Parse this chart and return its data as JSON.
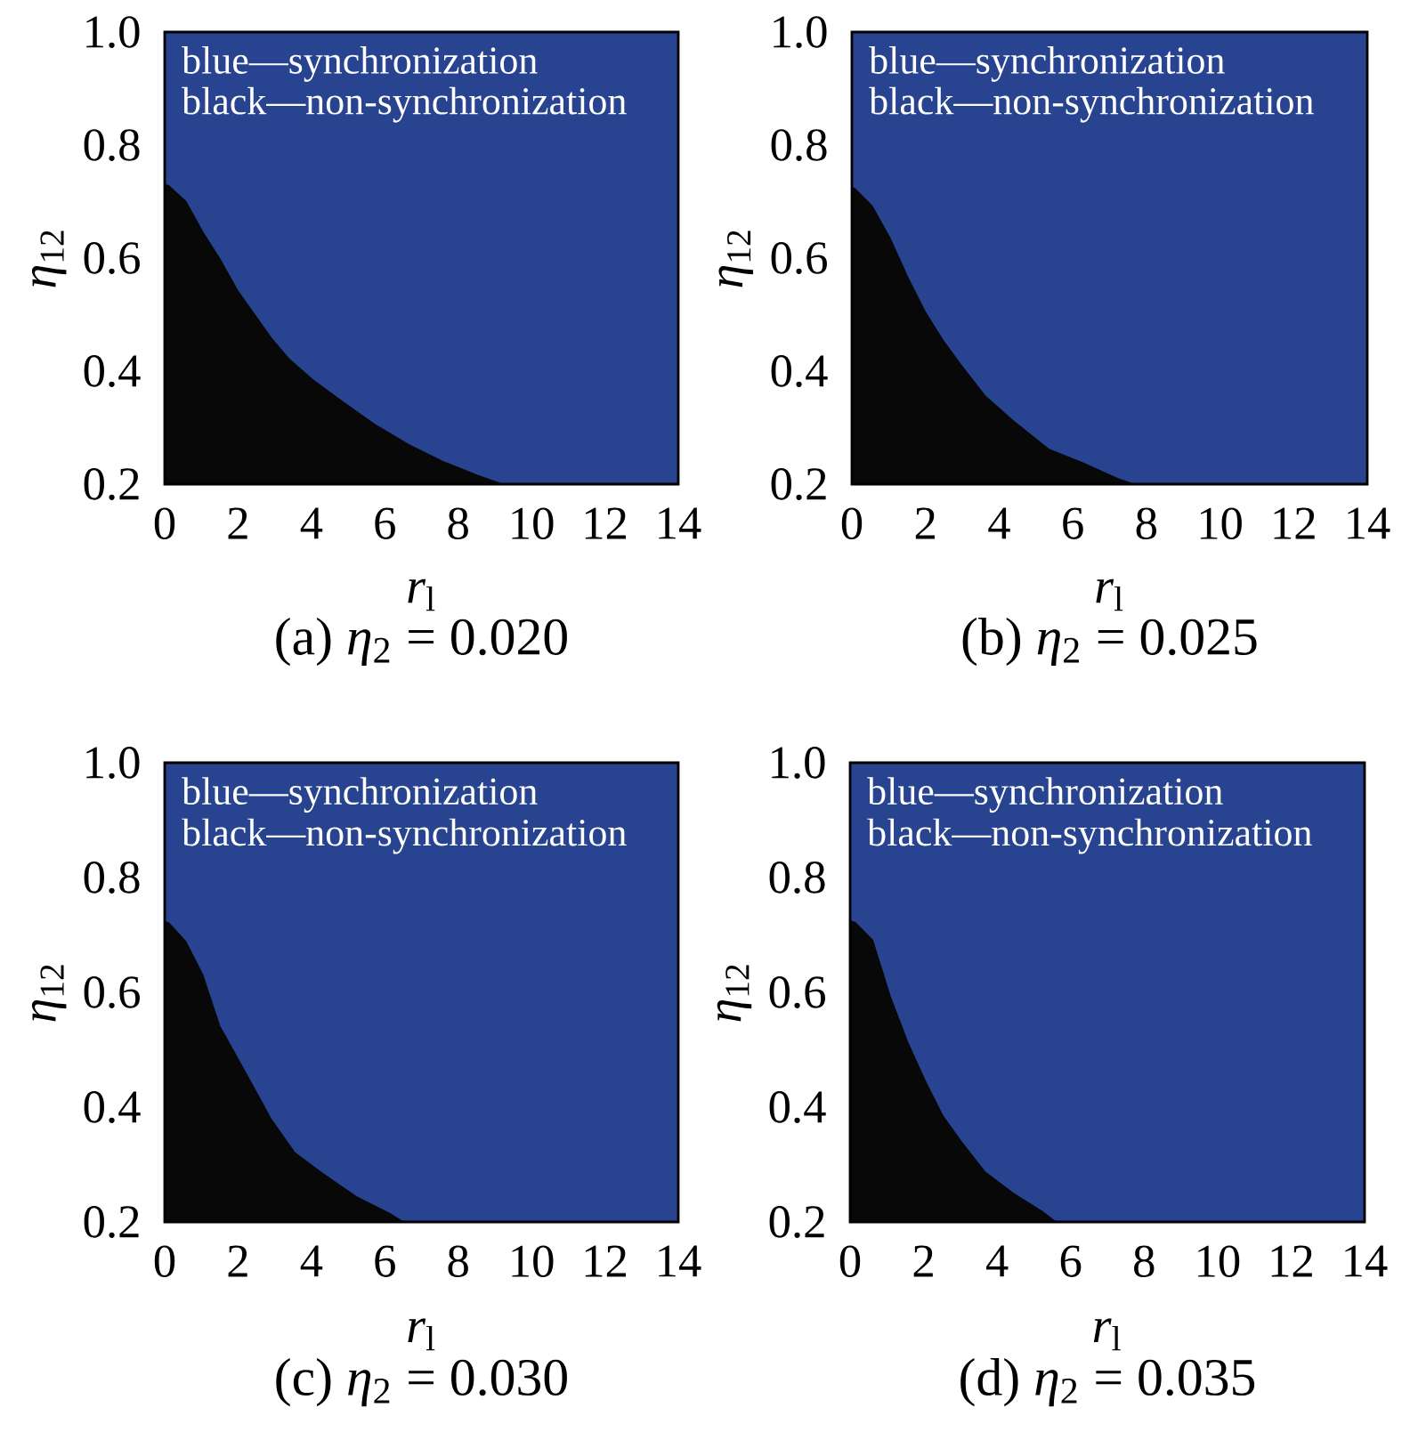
{
  "chart_data": [
    {
      "type": "area",
      "title": "(a) *η*$_{2}$ = 0.020",
      "xlabel": "*r*$_{l}$",
      "ylabel": "*η*$_{12}$",
      "xlim": [
        0,
        14
      ],
      "ylim": [
        0.2,
        1.0
      ],
      "xticks": [
        0,
        2,
        4,
        6,
        8,
        10,
        12,
        14
      ],
      "yticks": [
        {
          "value": 0.2,
          "label": "0.2"
        },
        {
          "value": 0.4,
          "label": "0.4"
        },
        {
          "value": 0.6,
          "label": "0.6"
        },
        {
          "value": 0.8,
          "label": "0.8"
        },
        {
          "value": 1.0,
          "label": "1.0"
        }
      ],
      "bands": [
        {
          "axis": "y",
          "from": 0.2,
          "to": 1.0,
          "color": "#28438f"
        }
      ],
      "annotations": [
        "blue—synchronization",
        "black—non-synchronization"
      ],
      "series": [
        {
          "color": "#080808",
          "x": [
            0,
            0.11,
            0.58,
            1.04,
            1.51,
            1.98,
            2.44,
            2.91,
            3.38,
            4.03,
            4.78,
            5.71,
            6.65,
            7.58,
            8.51,
            9.2
          ],
          "values": [
            0.73,
            0.728,
            0.7,
            0.646,
            0.598,
            0.543,
            0.501,
            0.458,
            0.422,
            0.385,
            0.349,
            0.306,
            0.27,
            0.24,
            0.216,
            0.2
          ]
        }
      ]
    },
    {
      "type": "area",
      "title": "(b) *η*$_{2}$ = 0.025",
      "xlabel": "*r*$_{l}$",
      "ylabel": "*η*$_{12}$",
      "xlim": [
        0,
        14
      ],
      "ylim": [
        0.2,
        1.0
      ],
      "xticks": [
        0,
        2,
        4,
        6,
        8,
        10,
        12,
        14
      ],
      "yticks": [
        {
          "value": 0.2,
          "label": "0.2"
        },
        {
          "value": 0.4,
          "label": "0.4"
        },
        {
          "value": 0.6,
          "label": "0.6"
        },
        {
          "value": 0.8,
          "label": "0.8"
        },
        {
          "value": 1.0,
          "label": "1.0"
        }
      ],
      "bands": [
        {
          "axis": "y",
          "from": 0.2,
          "to": 1.0,
          "color": "#28438f"
        }
      ],
      "annotations": [
        "blue—synchronization",
        "black—non-synchronization"
      ],
      "series": [
        {
          "color": "#080808",
          "x": [
            0,
            0.08,
            0.55,
            1.03,
            1.51,
            1.99,
            2.47,
            2.95,
            3.62,
            4.38,
            5.34,
            6.29,
            7.25,
            7.65
          ],
          "values": [
            0.725,
            0.723,
            0.692,
            0.636,
            0.567,
            0.505,
            0.455,
            0.412,
            0.356,
            0.312,
            0.262,
            0.237,
            0.209,
            0.2
          ]
        }
      ]
    },
    {
      "type": "area",
      "title": "(c) *η*$_{2}$ = 0.030",
      "xlabel": "*r*$_{l}$",
      "ylabel": "*η*$_{12}$",
      "xlim": [
        0,
        14
      ],
      "ylim": [
        0.2,
        1.0
      ],
      "xticks": [
        0,
        2,
        4,
        6,
        8,
        10,
        12,
        14
      ],
      "yticks": [
        {
          "value": 0.2,
          "label": "0.2"
        },
        {
          "value": 0.4,
          "label": "0.4"
        },
        {
          "value": 0.6,
          "label": "0.6"
        },
        {
          "value": 0.8,
          "label": "0.8"
        },
        {
          "value": 1.0,
          "label": "1.0"
        }
      ],
      "bands": [
        {
          "axis": "y",
          "from": 0.2,
          "to": 1.0,
          "color": "#28438f"
        }
      ],
      "annotations": [
        "blue—synchronization",
        "black—non-synchronization"
      ],
      "series": [
        {
          "color": "#080808",
          "x": [
            0,
            0.11,
            0.57,
            1.04,
            1.5,
            1.97,
            2.43,
            2.89,
            3.54,
            4.29,
            5.22,
            6.15,
            6.5
          ],
          "values": [
            0.723,
            0.721,
            0.689,
            0.63,
            0.541,
            0.487,
            0.434,
            0.38,
            0.321,
            0.285,
            0.244,
            0.214,
            0.2
          ]
        }
      ]
    },
    {
      "type": "area",
      "title": "(d) *η*$_{2}$ = 0.035",
      "xlabel": "*r*$_{l}$",
      "ylabel": "*η*$_{12}$",
      "xlim": [
        0,
        14
      ],
      "ylim": [
        0.2,
        1.0
      ],
      "xticks": [
        0,
        2,
        4,
        6,
        8,
        10,
        12,
        14
      ],
      "yticks": [
        {
          "value": 0.2,
          "label": "0.2"
        },
        {
          "value": 0.4,
          "label": "0.4"
        },
        {
          "value": 0.6,
          "label": "0.6"
        },
        {
          "value": 0.8,
          "label": "0.8"
        },
        {
          "value": 1.0,
          "label": "1.0"
        }
      ],
      "bands": [
        {
          "axis": "y",
          "from": 0.2,
          "to": 1.0,
          "color": "#28438f"
        }
      ],
      "annotations": [
        "blue—synchronization",
        "black—non-synchronization"
      ],
      "series": [
        {
          "color": "#080808",
          "x": [
            0,
            0.13,
            0.61,
            1.09,
            1.56,
            2.04,
            2.52,
            3.0,
            3.67,
            4.44,
            5.21,
            5.6
          ],
          "values": [
            0.724,
            0.722,
            0.691,
            0.593,
            0.514,
            0.446,
            0.385,
            0.342,
            0.287,
            0.25,
            0.219,
            0.2
          ]
        }
      ]
    }
  ]
}
